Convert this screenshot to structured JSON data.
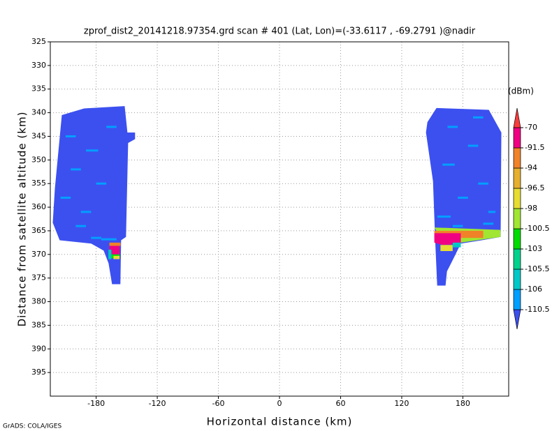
{
  "chart_data": {
    "type": "shaded",
    "title": "zprof_dist2_20141218.97354.grd  scan # 401  (Lat, Lon)=(-33.6117 , -69.2791 )@nadir",
    "x_label": "Horizontal distance (km)",
    "y_label": "Distance from satellite altitude (km)",
    "footer": "GrADS: COLA/IGES",
    "xlim": [
      -225,
      225
    ],
    "xticks": [
      -180,
      -120,
      -60,
      0,
      60,
      120,
      180
    ],
    "ylim": [
      325,
      400
    ],
    "yticks": [
      325,
      330,
      335,
      340,
      345,
      350,
      355,
      360,
      365,
      370,
      375,
      380,
      385,
      390,
      395
    ],
    "y_inverted": true,
    "grid": true,
    "colorbar": {
      "title": "(dBm)",
      "levels": [
        -110.5,
        -106,
        -105.5,
        -103,
        -100.5,
        -98,
        -96.5,
        -94,
        -91.5,
        -70
      ],
      "colors": [
        "#3c50f0",
        "#00a0ff",
        "#00c8c8",
        "#00d28c",
        "#00dc00",
        "#a0e632",
        "#e6dc32",
        "#e6af2d",
        "#f08228",
        "#f00082",
        "#fa3c3c"
      ]
    },
    "regions": [
      {
        "value": -112,
        "x": [
          -213.7,
          -191.8,
          -152,
          -149.3,
          -141.8,
          -141.8,
          -148.6,
          -150.7,
          -155.5,
          -156.2,
          -164.4,
          -167.8,
          -172.6,
          -184.9,
          -215.8,
          -222.6,
          -220.5
        ],
        "y": [
          340.5,
          339.1,
          338.6,
          344.2,
          344.2,
          345.6,
          346.4,
          366.3,
          367,
          376.3,
          376.3,
          371.9,
          369.2,
          367.7,
          367,
          363.3,
          356
        ]
      },
      {
        "value": -112,
        "x": [
          154.1,
          205.5,
          217.8,
          217.1,
          198.6,
          178,
          171.2,
          164.4,
          163,
          154.8,
          152.7,
          150.7,
          143.8,
          145.2
        ],
        "y": [
          339,
          339.4,
          344.2,
          366.3,
          367,
          367.7,
          370.7,
          373.6,
          376.6,
          376.6,
          366.3,
          354.5,
          344.2,
          342
        ]
      },
      {
        "value": -93,
        "x": [
          -167,
          -156,
          -156,
          -167
        ],
        "y": [
          367.5,
          367.5,
          368.2,
          368.2
        ]
      },
      {
        "value": -80,
        "x": [
          -167,
          -157,
          -157,
          -167
        ],
        "y": [
          368.2,
          368.2,
          370,
          370
        ]
      },
      {
        "value": -102,
        "x": [
          -165,
          -157,
          -157,
          -165
        ],
        "y": [
          370,
          370,
          370.8,
          370.8
        ]
      },
      {
        "value": -97,
        "x": [
          -163,
          -157,
          -157,
          -163
        ],
        "y": [
          370.3,
          370.3,
          371,
          371
        ]
      },
      {
        "value": -105.8,
        "x": [
          -168,
          -165,
          -165,
          -168
        ],
        "y": [
          369,
          369,
          371,
          371
        ]
      },
      {
        "value": -99,
        "x": [
          152,
          217,
          217,
          178,
          160
        ],
        "y": [
          364.3,
          364.8,
          366.3,
          367.5,
          367
        ]
      },
      {
        "value": -93,
        "x": [
          152,
          200,
          200,
          152
        ],
        "y": [
          365,
          365,
          366.5,
          366.5
        ]
      },
      {
        "value": -80,
        "x": [
          152,
          178,
          178,
          160,
          152
        ],
        "y": [
          365.5,
          365.5,
          367.8,
          368,
          367.5
        ]
      },
      {
        "value": -97,
        "x": [
          158,
          170,
          170,
          158
        ],
        "y": [
          368,
          368,
          369.3,
          369.3
        ]
      },
      {
        "value": -105.8,
        "x": [
          170,
          178,
          178,
          170
        ],
        "y": [
          367.5,
          367.5,
          368.5,
          368.5
        ]
      }
    ],
    "streaks": [
      {
        "value": -107,
        "x": [
          -210,
          -200
        ],
        "y": 345
      },
      {
        "value": -107,
        "x": [
          -190,
          -178
        ],
        "y": 348
      },
      {
        "value": -107,
        "x": [
          -205,
          -195
        ],
        "y": 352
      },
      {
        "value": -107,
        "x": [
          -180,
          -170
        ],
        "y": 355
      },
      {
        "value": -107,
        "x": [
          -215,
          -205
        ],
        "y": 358
      },
      {
        "value": -107,
        "x": [
          -195,
          -185
        ],
        "y": 361
      },
      {
        "value": -107,
        "x": [
          -170,
          -160
        ],
        "y": 343
      },
      {
        "value": -107,
        "x": [
          -200,
          -190
        ],
        "y": 364
      },
      {
        "value": -107,
        "x": [
          -185,
          -175
        ],
        "y": 366.5
      },
      {
        "value": -107,
        "x": [
          -175,
          -160
        ],
        "y": 366.8
      },
      {
        "value": -107,
        "x": [
          165,
          175
        ],
        "y": 343
      },
      {
        "value": -107,
        "x": [
          185,
          195
        ],
        "y": 347
      },
      {
        "value": -107,
        "x": [
          160,
          172
        ],
        "y": 351
      },
      {
        "value": -107,
        "x": [
          195,
          205
        ],
        "y": 355
      },
      {
        "value": -107,
        "x": [
          175,
          185
        ],
        "y": 358
      },
      {
        "value": -107,
        "x": [
          205,
          212
        ],
        "y": 361
      },
      {
        "value": -107,
        "x": [
          155,
          168
        ],
        "y": 362
      },
      {
        "value": -107,
        "x": [
          190,
          200
        ],
        "y": 341
      },
      {
        "value": -107,
        "x": [
          170,
          180
        ],
        "y": 364
      },
      {
        "value": -107,
        "x": [
          200,
          210
        ],
        "y": 363.5
      }
    ]
  }
}
